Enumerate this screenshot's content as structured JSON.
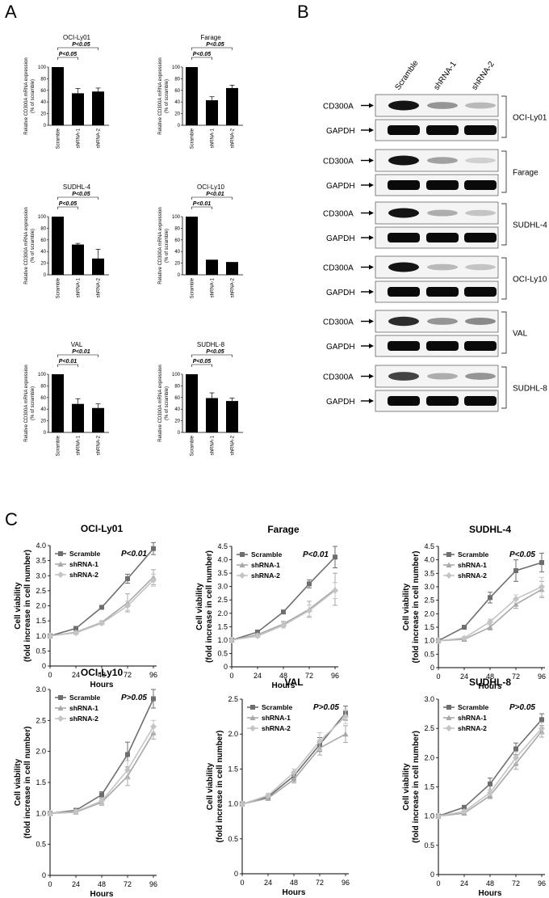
{
  "panel_labels": {
    "a": "A",
    "b": "B",
    "c": "C"
  },
  "colors": {
    "scramble": "#6e6e6e",
    "shrna1": "#a8a8a8",
    "shrna2": "#c4c4c4",
    "bar": "#000000"
  },
  "chart_data": [
    {
      "type": "bar",
      "panel": "A",
      "title": "OCI-Ly01",
      "categories": [
        "Scramble",
        "shRNA-1",
        "shRNA-2"
      ],
      "values": [
        100,
        55,
        58
      ],
      "errors": [
        0,
        8,
        6
      ],
      "ylim": [
        0,
        100
      ],
      "yticks": [
        0,
        20,
        40,
        60,
        80,
        100
      ],
      "ylabel": "Relative CD300A mRNA expression",
      "ylabel2": "(% of scramble)",
      "pvals": [
        "P<0.05",
        "P<0.05"
      ]
    },
    {
      "type": "bar",
      "panel": "A",
      "title": "Farage",
      "categories": [
        "Scramble",
        "shRNA-1",
        "shRNA-2"
      ],
      "values": [
        100,
        43,
        64
      ],
      "errors": [
        0,
        6,
        5
      ],
      "ylim": [
        0,
        100
      ],
      "yticks": [
        0,
        20,
        40,
        60,
        80,
        100
      ],
      "ylabel": "Relative CD300A mRNA expression",
      "ylabel2": "(% of scramble)",
      "pvals": [
        "P<0.05",
        "P<0.05"
      ]
    },
    {
      "type": "bar",
      "panel": "A",
      "title": "SUDHL-4",
      "categories": [
        "Scramble",
        "shRNA-1",
        "shRNA-2"
      ],
      "values": [
        100,
        52,
        28
      ],
      "errors": [
        0,
        2,
        16
      ],
      "ylim": [
        0,
        100
      ],
      "yticks": [
        0,
        20,
        40,
        60,
        80,
        100
      ],
      "ylabel": "Relative CD300A mRNA expression",
      "ylabel2": "(% of scramble)",
      "pvals": [
        "P<0.05",
        "P<0.05"
      ]
    },
    {
      "type": "bar",
      "panel": "A",
      "title": "OCI-Ly10",
      "categories": [
        "Scramble",
        "shRNA-1",
        "shRNA-2"
      ],
      "values": [
        100,
        26,
        22
      ],
      "errors": [
        0,
        0,
        0
      ],
      "ylim": [
        0,
        100
      ],
      "yticks": [
        0,
        20,
        40,
        60,
        80,
        100
      ],
      "ylabel": "Relative CD300A mRNA expression",
      "ylabel2": "(% of scramble)",
      "pvals": [
        "P<0.01",
        "P<0.01"
      ]
    },
    {
      "type": "bar",
      "panel": "A",
      "title": "VAL",
      "categories": [
        "Scramble",
        "shRNA-1",
        "shRNA-2"
      ],
      "values": [
        100,
        49,
        42
      ],
      "errors": [
        0,
        9,
        7
      ],
      "ylim": [
        0,
        100
      ],
      "yticks": [
        0,
        20,
        40,
        60,
        80,
        100
      ],
      "ylabel": "Relative CD300A mRNA expression",
      "ylabel2": "(% of scramble)",
      "pvals": [
        "P<0.01",
        "P<0.01"
      ]
    },
    {
      "type": "bar",
      "panel": "A",
      "title": "SUDHL-8",
      "categories": [
        "Scramble",
        "shRNA-1",
        "shRNA-2"
      ],
      "values": [
        100,
        59,
        54
      ],
      "errors": [
        0,
        9,
        5
      ],
      "ylim": [
        0,
        100
      ],
      "yticks": [
        0,
        20,
        40,
        60,
        80,
        100
      ],
      "ylabel": "Relative CD300A mRNA expression",
      "ylabel2": "(% of scramble)",
      "pvals": [
        "P<0.05",
        "P<0.05"
      ]
    },
    {
      "type": "line",
      "panel": "C",
      "title": "OCI-Ly01",
      "x": [
        0,
        24,
        48,
        72,
        96
      ],
      "xlabel": "Hours",
      "ylabel": "Cell viability",
      "ylabel2": "(fold increase in cell number)",
      "ylim": [
        0,
        4.0
      ],
      "yticks": [
        0,
        0.5,
        1.0,
        1.5,
        2.0,
        2.5,
        3.0,
        3.5,
        4.0
      ],
      "ytick_labels": [
        "0",
        "0.5",
        "1.0",
        "1.5",
        "2.0",
        "2.5",
        "3.0",
        "3.5",
        "4.0"
      ],
      "pvalue": "P<0.01",
      "series": [
        {
          "name": "Scramble",
          "values": [
            1.0,
            1.25,
            1.95,
            2.9,
            3.9
          ],
          "errors": [
            0,
            0.05,
            0.05,
            0.15,
            0.2
          ]
        },
        {
          "name": "shRNA-1",
          "values": [
            1.0,
            1.12,
            1.45,
            2.1,
            2.95
          ],
          "errors": [
            0,
            0.05,
            0.05,
            0.3,
            0.25
          ]
        },
        {
          "name": "shRNA-2",
          "values": [
            1.0,
            1.1,
            1.42,
            2.0,
            2.85
          ],
          "errors": [
            0,
            0.05,
            0.05,
            0.15,
            0.2
          ]
        }
      ]
    },
    {
      "type": "line",
      "panel": "C",
      "title": "Farage",
      "x": [
        0,
        24,
        48,
        72,
        96
      ],
      "xlabel": "Hours",
      "ylabel": "Cell viability",
      "ylabel2": "(fold increase in cell number)",
      "ylim": [
        0,
        4.5
      ],
      "yticks": [
        0,
        0.5,
        1.0,
        1.5,
        2.0,
        2.5,
        3.0,
        3.5,
        4.0,
        4.5
      ],
      "ytick_labels": [
        "0",
        "0.5",
        "1.0",
        "1.5",
        "2.0",
        "2.5",
        "3.0",
        "3.5",
        "4.0",
        "4.5"
      ],
      "pvalue": "P<0.01",
      "series": [
        {
          "name": "Scramble",
          "values": [
            1.0,
            1.3,
            2.05,
            3.1,
            4.1
          ],
          "errors": [
            0,
            0.05,
            0.05,
            0.15,
            0.4
          ]
        },
        {
          "name": "shRNA-1",
          "values": [
            1.0,
            1.2,
            1.6,
            2.15,
            2.9
          ],
          "errors": [
            0,
            0.05,
            0.1,
            0.3,
            0.6
          ]
        },
        {
          "name": "shRNA-2",
          "values": [
            1.0,
            1.15,
            1.55,
            2.1,
            2.85
          ],
          "errors": [
            0,
            0.05,
            0.1,
            0.2,
            0.3
          ]
        }
      ]
    },
    {
      "type": "line",
      "panel": "C",
      "title": "SUDHL-4",
      "x": [
        0,
        24,
        48,
        72,
        96
      ],
      "xlabel": "Hours",
      "ylabel": "Cell viability",
      "ylabel2": "(fold increase in cell number)",
      "ylim": [
        0,
        4.5
      ],
      "yticks": [
        0,
        0.5,
        1.0,
        1.5,
        2.0,
        2.5,
        3.0,
        3.5,
        4.0,
        4.5
      ],
      "ytick_labels": [
        "0",
        "0.5",
        "1.0",
        "1.5",
        "2.0",
        "2.5",
        "3.0",
        "3.5",
        "4.0",
        "4.5"
      ],
      "pvalue": "P<0.05",
      "series": [
        {
          "name": "Scramble",
          "values": [
            1.0,
            1.5,
            2.6,
            3.6,
            3.9
          ],
          "errors": [
            0,
            0.05,
            0.2,
            0.4,
            0.35
          ]
        },
        {
          "name": "shRNA-1",
          "values": [
            1.0,
            1.05,
            1.5,
            2.35,
            2.9
          ],
          "errors": [
            0,
            0.05,
            0.1,
            0.15,
            0.3
          ]
        },
        {
          "name": "shRNA-2",
          "values": [
            1.0,
            1.1,
            1.7,
            2.55,
            3.0
          ],
          "errors": [
            0,
            0.05,
            0.1,
            0.15,
            0.35
          ]
        }
      ]
    },
    {
      "type": "line",
      "panel": "C",
      "title": "OCI-Ly10",
      "x": [
        0,
        24,
        48,
        72,
        96
      ],
      "xlabel": "Hours",
      "ylabel": "Cell viability",
      "ylabel2": "(fold increase in cell number)",
      "ylim": [
        0,
        3.0
      ],
      "yticks": [
        0,
        0.5,
        1.0,
        1.5,
        2.0,
        2.5,
        3.0
      ],
      "ytick_labels": [
        "0",
        "0.5",
        "1.0",
        "1.5",
        "2.0",
        "2.5",
        "3.0"
      ],
      "pvalue": "P>0.05",
      "series": [
        {
          "name": "Scramble",
          "values": [
            1.0,
            1.05,
            1.3,
            1.95,
            2.85
          ],
          "errors": [
            0,
            0.03,
            0.05,
            0.2,
            0.15
          ]
        },
        {
          "name": "shRNA-1",
          "values": [
            1.0,
            1.02,
            1.18,
            1.6,
            2.3
          ],
          "errors": [
            0,
            0.03,
            0.05,
            0.15,
            0.1
          ]
        },
        {
          "name": "shRNA-2",
          "values": [
            1.0,
            1.03,
            1.2,
            1.7,
            2.4
          ],
          "errors": [
            0,
            0.03,
            0.05,
            0.15,
            0.1
          ]
        }
      ]
    },
    {
      "type": "line",
      "panel": "C",
      "title": "VAL",
      "x": [
        0,
        24,
        48,
        72,
        96
      ],
      "xlabel": "Hours",
      "ylabel": "Cell viability",
      "ylabel2": "(fold increase in cell number)",
      "ylim": [
        0,
        2.5
      ],
      "yticks": [
        0,
        0.5,
        1.0,
        1.5,
        2.0,
        2.5
      ],
      "ytick_labels": [
        "0",
        "0.5",
        "1.0",
        "1.5",
        "2.0",
        "2.5"
      ],
      "pvalue": "P>0.05",
      "series": [
        {
          "name": "Scramble",
          "values": [
            1.0,
            1.1,
            1.4,
            1.85,
            2.3
          ],
          "errors": [
            0,
            0.03,
            0.05,
            0.1,
            0.1
          ]
        },
        {
          "name": "shRNA-1",
          "values": [
            1.0,
            1.08,
            1.35,
            1.8,
            2.0
          ],
          "errors": [
            0,
            0.03,
            0.05,
            0.1,
            0.12
          ]
        },
        {
          "name": "shRNA-2",
          "values": [
            1.0,
            1.12,
            1.45,
            1.9,
            2.25
          ],
          "errors": [
            0,
            0.03,
            0.05,
            0.12,
            0.1
          ]
        }
      ]
    },
    {
      "type": "line",
      "panel": "C",
      "title": "SUDHL-8",
      "x": [
        0,
        24,
        48,
        72,
        96
      ],
      "xlabel": "Hours",
      "ylabel": "Cell viability",
      "ylabel2": "(fold increase in cell number)",
      "ylim": [
        0,
        3.0
      ],
      "yticks": [
        0,
        0.5,
        1.0,
        1.5,
        2.0,
        2.5,
        3.0
      ],
      "ytick_labels": [
        "0",
        "0.5",
        "1.0",
        "1.5",
        "2.0",
        "2.5",
        "3.0"
      ],
      "pvalue": "P>0.05",
      "series": [
        {
          "name": "Scramble",
          "values": [
            1.0,
            1.15,
            1.55,
            2.15,
            2.65
          ],
          "errors": [
            0,
            0.03,
            0.1,
            0.1,
            0.1
          ]
        },
        {
          "name": "shRNA-1",
          "values": [
            1.0,
            1.05,
            1.35,
            1.9,
            2.45
          ],
          "errors": [
            0,
            0.03,
            0.05,
            0.1,
            0.1
          ]
        },
        {
          "name": "shRNA-2",
          "values": [
            1.0,
            1.08,
            1.4,
            2.0,
            2.5
          ],
          "errors": [
            0,
            0.03,
            0.05,
            0.1,
            0.1
          ]
        }
      ]
    }
  ],
  "western": {
    "lanes": [
      "Scramble",
      "shRNA-1",
      "shRNA-2"
    ],
    "band_label_top": "CD300A",
    "band_label_bottom": "GAPDH",
    "blots": [
      {
        "cell_line": "OCI-Ly01",
        "cd300a_intensity": [
          1.0,
          0.45,
          0.3
        ],
        "gapdh_intensity": [
          1.0,
          1.0,
          1.0
        ]
      },
      {
        "cell_line": "Farage",
        "cd300a_intensity": [
          1.0,
          0.4,
          0.2
        ],
        "gapdh_intensity": [
          1.0,
          1.0,
          1.0
        ]
      },
      {
        "cell_line": "SUDHL-4",
        "cd300a_intensity": [
          1.0,
          0.35,
          0.25
        ],
        "gapdh_intensity": [
          1.0,
          1.0,
          1.0
        ]
      },
      {
        "cell_line": "OCI-Ly10",
        "cd300a_intensity": [
          1.0,
          0.3,
          0.25
        ],
        "gapdh_intensity": [
          1.0,
          1.0,
          1.0
        ]
      },
      {
        "cell_line": "VAL",
        "cd300a_intensity": [
          0.9,
          0.45,
          0.5
        ],
        "gapdh_intensity": [
          1.0,
          1.0,
          1.0
        ]
      },
      {
        "cell_line": "SUDHL-8",
        "cd300a_intensity": [
          0.8,
          0.35,
          0.45
        ],
        "gapdh_intensity": [
          1.0,
          1.0,
          1.0
        ]
      }
    ]
  }
}
